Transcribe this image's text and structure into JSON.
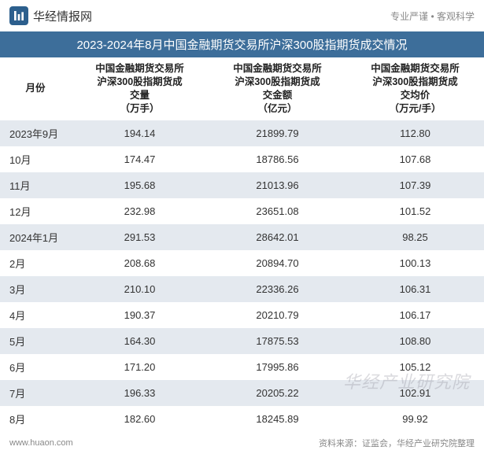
{
  "header": {
    "logo_text": "华经情报网",
    "tagline": "专业严谨 • 客观科学"
  },
  "title": "2023-2024年8月中国金融期货交易所沪深300股指期货成交情况",
  "table": {
    "columns": [
      "月份",
      "中国金融期货交易所沪深300股指期货成交量（万手）",
      "中国金融期货交易所沪深300股指期货成交金额（亿元）",
      "中国金融期货交易所沪深300股指期货成交均价（万元/手）"
    ],
    "col_headers_lines": [
      [
        "月份"
      ],
      [
        "中国金融期货交易所",
        "沪深300股指期货成",
        "交量",
        "（万手）"
      ],
      [
        "中国金融期货交易所",
        "沪深300股指期货成",
        "交金额",
        "（亿元）"
      ],
      [
        "中国金融期货交易所",
        "沪深300股指期货成",
        "交均价",
        "（万元/手）"
      ]
    ],
    "rows": [
      {
        "month": "2023年9月",
        "volume": "194.14",
        "turnover": "21899.79",
        "avg_price": "112.80"
      },
      {
        "month": "10月",
        "volume": "174.47",
        "turnover": "18786.56",
        "avg_price": "107.68"
      },
      {
        "month": "11月",
        "volume": "195.68",
        "turnover": "21013.96",
        "avg_price": "107.39"
      },
      {
        "month": "12月",
        "volume": "232.98",
        "turnover": "23651.08",
        "avg_price": "101.52"
      },
      {
        "month": "2024年1月",
        "volume": "291.53",
        "turnover": "28642.01",
        "avg_price": "98.25"
      },
      {
        "month": "2月",
        "volume": "208.68",
        "turnover": "20894.70",
        "avg_price": "100.13"
      },
      {
        "month": "3月",
        "volume": "210.10",
        "turnover": "22336.26",
        "avg_price": "106.31"
      },
      {
        "month": "4月",
        "volume": "190.37",
        "turnover": "20210.79",
        "avg_price": "106.17"
      },
      {
        "month": "5月",
        "volume": "164.30",
        "turnover": "17875.53",
        "avg_price": "108.80"
      },
      {
        "month": "6月",
        "volume": "171.20",
        "turnover": "17995.86",
        "avg_price": "105.12"
      },
      {
        "month": "7月",
        "volume": "196.33",
        "turnover": "20205.22",
        "avg_price": "102.91"
      },
      {
        "month": "8月",
        "volume": "182.60",
        "turnover": "18245.89",
        "avg_price": "99.92"
      }
    ],
    "row_colors": {
      "odd": "#e4e9ef",
      "even": "#ffffff"
    },
    "header_bg": "#ffffff",
    "title_bg": "#3d6e9a",
    "title_color": "#ffffff"
  },
  "footer": {
    "website": "www.huaon.com",
    "source": "资料来源：证监会，华经产业研究院整理"
  },
  "watermark": "华经产业研究院"
}
